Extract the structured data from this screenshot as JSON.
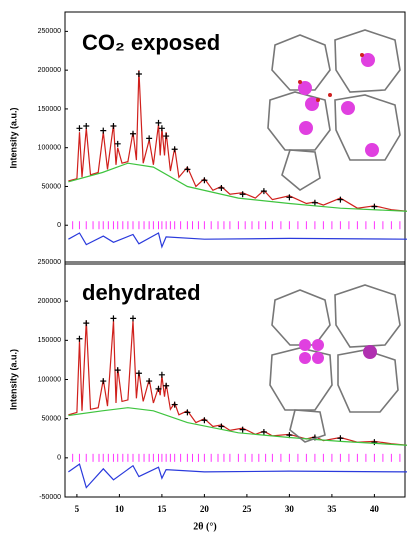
{
  "chart_data": [
    {
      "type": "line",
      "label": "CO₂ exposed",
      "ylabel": "Intensity (a.u.)",
      "xlim": [
        3.6,
        43.6
      ],
      "ylim": [
        -50000,
        275000
      ],
      "yticks": [
        0,
        50000,
        100000,
        150000,
        200000,
        250000
      ],
      "series": [
        {
          "color": "#d0201c",
          "x": [
            4,
            5,
            5.3,
            5.6,
            6.1,
            6.6,
            7.5,
            8.1,
            8.6,
            9.3,
            9.6,
            9.8,
            10.3,
            11,
            11.6,
            12,
            12.3,
            12.8,
            13.5,
            14,
            14.6,
            14.8,
            15,
            15.3,
            15.5,
            16,
            16.5,
            17,
            18,
            19,
            20,
            21,
            22,
            23,
            24.5,
            26,
            27,
            28,
            30,
            32,
            33,
            34,
            36,
            38,
            40,
            42,
            44
          ],
          "values": [
            57000,
            60000,
            120000,
            62000,
            125000,
            65000,
            68000,
            120000,
            72000,
            130000,
            78000,
            100000,
            80000,
            82000,
            120000,
            84000,
            200000,
            80000,
            110000,
            78000,
            130000,
            90000,
            125000,
            90000,
            120000,
            70000,
            100000,
            62000,
            75000,
            50000,
            60000,
            45000,
            50000,
            40000,
            42000,
            35000,
            45000,
            33000,
            38000,
            28000,
            30000,
            26000,
            35000,
            22000,
            25000,
            20000,
            18000
          ]
        },
        {
          "color": "#000000",
          "marker": "+",
          "x": [
            5.3,
            6.1,
            8.1,
            9.3,
            9.8,
            11.6,
            12.3,
            13.5,
            14.6,
            15,
            15.5,
            16.5,
            18,
            20,
            22,
            24.5,
            27,
            30,
            33,
            36,
            40
          ],
          "values": [
            125000,
            128000,
            122000,
            128000,
            105000,
            118000,
            195000,
            112000,
            132000,
            125000,
            115000,
            98000,
            72000,
            58000,
            48000,
            40000,
            44000,
            36000,
            29000,
            33000,
            24000
          ]
        },
        {
          "color": "#3ec43e",
          "x": [
            4,
            8,
            11,
            14,
            18,
            24,
            30,
            36,
            44
          ],
          "values": [
            56000,
            68000,
            80000,
            75000,
            50000,
            35000,
            28000,
            22000,
            18000
          ]
        },
        {
          "color": "#2a3adc",
          "x": [
            4,
            5.3,
            6.1,
            8.1,
            9.3,
            11.6,
            12.3,
            14.6,
            15,
            15.5,
            20,
            30,
            44
          ],
          "values": [
            -18000,
            -10000,
            -25000,
            -14000,
            -22000,
            -12000,
            -24000,
            -10000,
            -28000,
            -15000,
            -18000,
            -17000,
            -18000
          ]
        }
      ],
      "reflections": {
        "color": "#ff33ff",
        "y": 0,
        "x": [
          4.5,
          5.3,
          6.1,
          6.9,
          7.6,
          8.1,
          8.7,
          9.3,
          9.8,
          10.4,
          11,
          11.6,
          12.3,
          12.9,
          13.5,
          14,
          14.6,
          15,
          15.5,
          16,
          16.5,
          17.2,
          18,
          18.6,
          19.3,
          20,
          20.8,
          21.6,
          22.3,
          23,
          24,
          24.8,
          25.6,
          26.4,
          27.2,
          28,
          29,
          30,
          31,
          32,
          33,
          34,
          35,
          36,
          37,
          38,
          39,
          40,
          41,
          42,
          43
        ]
      }
    },
    {
      "type": "line",
      "label": "dehydrated",
      "ylabel": "Intensity (a.u.)",
      "xlabel": "2θ (°)",
      "xlim": [
        3.6,
        43.6
      ],
      "ylim": [
        -50000,
        250000
      ],
      "yticks": [
        -50000,
        0,
        50000,
        100000,
        150000,
        200000,
        250000
      ],
      "xticks": [
        5,
        10,
        15,
        20,
        25,
        30,
        35,
        40
      ],
      "series": [
        {
          "color": "#d0201c",
          "x": [
            4,
            5,
            5.3,
            5.6,
            6.1,
            6.6,
            7.5,
            8.1,
            8.6,
            9.3,
            9.6,
            9.8,
            10.3,
            11,
            11.6,
            12,
            12.3,
            12.8,
            13.5,
            14,
            14.6,
            14.8,
            15,
            15.3,
            15.5,
            16,
            16.5,
            17,
            18,
            19,
            20,
            21,
            22,
            23,
            24.5,
            26,
            27,
            28,
            30,
            32,
            33,
            34,
            36,
            38,
            40,
            42,
            44
          ],
          "values": [
            55000,
            58000,
            150000,
            60000,
            175000,
            62000,
            64000,
            100000,
            66000,
            175000,
            70000,
            115000,
            72000,
            74000,
            175000,
            76000,
            110000,
            72000,
            100000,
            70000,
            90000,
            80000,
            105000,
            78000,
            95000,
            62000,
            70000,
            55000,
            60000,
            45000,
            50000,
            40000,
            42000,
            35000,
            38000,
            30000,
            34000,
            28000,
            30000,
            24000,
            27000,
            22000,
            26000,
            20000,
            21000,
            18000,
            16000
          ]
        },
        {
          "color": "#000000",
          "marker": "+",
          "x": [
            5.3,
            6.1,
            8.1,
            9.3,
            9.8,
            11.6,
            12.3,
            13.5,
            14.6,
            15,
            15.5,
            16.5,
            18,
            20,
            22,
            24.5,
            27,
            30,
            33,
            36,
            40
          ],
          "values": [
            152000,
            172000,
            98000,
            178000,
            112000,
            178000,
            108000,
            98000,
            88000,
            106000,
            92000,
            68000,
            58000,
            48000,
            40000,
            36000,
            33000,
            29000,
            26000,
            25000,
            20000
          ]
        },
        {
          "color": "#3ec43e",
          "x": [
            4,
            8,
            11,
            14,
            18,
            24,
            30,
            36,
            44
          ],
          "values": [
            54000,
            60000,
            64000,
            60000,
            45000,
            32000,
            26000,
            21000,
            16000
          ]
        },
        {
          "color": "#2a3adc",
          "x": [
            4,
            5.3,
            6.1,
            8.1,
            9.3,
            11.6,
            12.3,
            14.6,
            15,
            15.5,
            20,
            30,
            44
          ],
          "values": [
            -18000,
            -8000,
            -38000,
            -14000,
            -28000,
            -10000,
            -24000,
            -12000,
            -26000,
            -15000,
            -18000,
            -17000,
            -18000
          ]
        }
      ],
      "reflections": {
        "color": "#ff33ff",
        "y": 0,
        "x": [
          4.5,
          5.3,
          6.1,
          6.9,
          7.6,
          8.1,
          8.7,
          9.3,
          9.8,
          10.4,
          11,
          11.6,
          12.3,
          12.9,
          13.5,
          14,
          14.6,
          15,
          15.5,
          16,
          16.5,
          17.2,
          18,
          18.6,
          19.3,
          20,
          20.8,
          21.6,
          22.3,
          23,
          24,
          24.8,
          25.6,
          26.4,
          27.2,
          28,
          29,
          30,
          31,
          32,
          33,
          34,
          35,
          36,
          37,
          38,
          39,
          40,
          41,
          42,
          43
        ]
      }
    }
  ]
}
